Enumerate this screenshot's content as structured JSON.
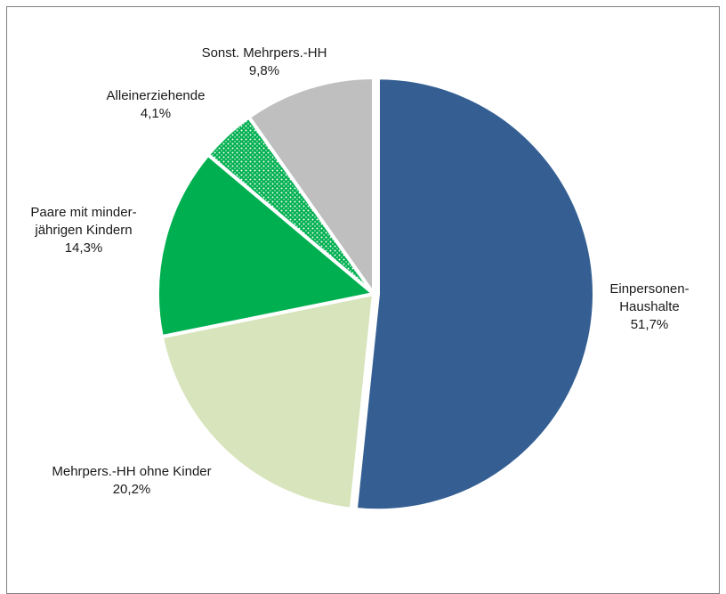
{
  "chart_data": {
    "type": "pie",
    "title": "",
    "start_angle_deg": 0,
    "direction": "clockwise",
    "slices": [
      {
        "name_lines": [
          "Einpersonen-",
          "Haushalte"
        ],
        "value": 51.7,
        "value_label": "51,7%",
        "color": "#355f93",
        "pattern": "none"
      },
      {
        "name_lines": [
          "Mehrpers.-HH ohne Kinder"
        ],
        "value": 20.2,
        "value_label": "20,2%",
        "color": "#d8e4bc",
        "pattern": "none"
      },
      {
        "name_lines": [
          "Paare mit minder-",
          "jährigen Kindern"
        ],
        "value": 14.3,
        "value_label": "14,3%",
        "color": "#00b050",
        "pattern": "none"
      },
      {
        "name_lines": [
          "Alleinerziehende"
        ],
        "value": 4.1,
        "value_label": "4,1%",
        "color": "#00b050",
        "pattern": "dots"
      },
      {
        "name_lines": [
          "Sonst. Mehrpers.-HH"
        ],
        "value": 9.8,
        "value_label": "9,8%",
        "color": "#bfbfbf",
        "pattern": "none"
      }
    ],
    "legend": "none",
    "data_labels": "outside"
  }
}
